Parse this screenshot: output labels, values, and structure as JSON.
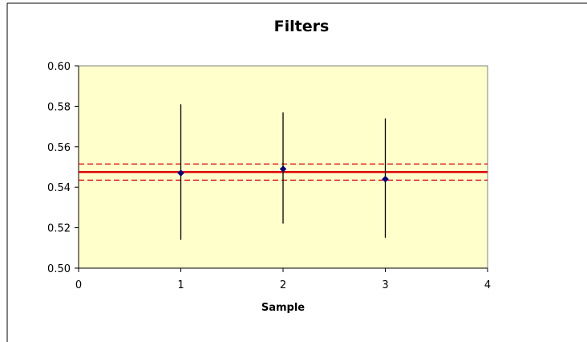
{
  "chart_data": {
    "type": "scatter",
    "title": "Filters",
    "xlabel": "Sample",
    "ylabel": "",
    "xlim": [
      0,
      4
    ],
    "ylim": [
      0.5,
      0.6
    ],
    "x_ticks": [
      "0",
      "1",
      "2",
      "3",
      "4"
    ],
    "y_ticks": [
      "0.50",
      "0.52",
      "0.54",
      "0.56",
      "0.58",
      "0.60"
    ],
    "grid": false,
    "legend": "none",
    "plot_background": "#FFFFCC",
    "series": [
      {
        "points": [
          {
            "x": 1,
            "y": 0.547,
            "error_low": 0.514,
            "error_high": 0.581
          },
          {
            "x": 2,
            "y": 0.549,
            "error_low": 0.522,
            "error_high": 0.577
          },
          {
            "x": 3,
            "y": 0.544,
            "error_low": 0.515,
            "error_high": 0.574
          }
        ],
        "marker": "diamond",
        "marker_color": "#000080",
        "error_bar_color": "#000000"
      }
    ],
    "reference_lines": [
      {
        "y": 0.5475,
        "style": "solid",
        "color": "#DD0000"
      },
      {
        "y": 0.5515,
        "style": "dashed",
        "color": "#DD0000"
      },
      {
        "y": 0.5435,
        "style": "dashed",
        "color": "#DD0000"
      }
    ]
  }
}
